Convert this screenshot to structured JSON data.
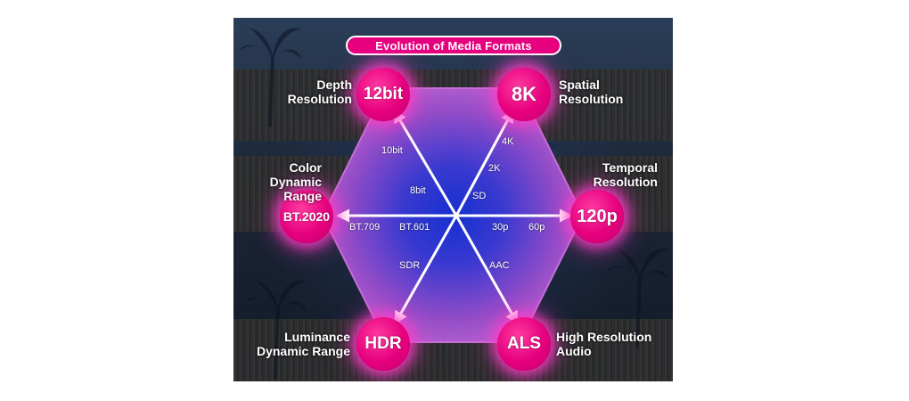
{
  "title": "Evolution of Media Formats",
  "colors": {
    "accent": "#e6007e",
    "hexagon": "#b24fd0",
    "center": "#1e3ad0",
    "arrow": "#ffffff"
  },
  "axes": [
    {
      "id": "depth",
      "node": "12bit",
      "label_lines": [
        "Depth",
        "Resolution"
      ],
      "ticks": [
        "10bit",
        "8bit"
      ]
    },
    {
      "id": "spatial",
      "node": "8K",
      "label_lines": [
        "Spatial",
        "Resolution"
      ],
      "ticks": [
        "4K",
        "2K",
        "SD"
      ]
    },
    {
      "id": "temporal",
      "node": "120p",
      "label_lines": [
        "Temporal",
        "Resolution"
      ],
      "ticks": [
        "30p",
        "60p"
      ]
    },
    {
      "id": "audio",
      "node": "ALS",
      "label_lines": [
        "High Resolution",
        "Audio"
      ],
      "ticks": [
        "AAC"
      ]
    },
    {
      "id": "luminance",
      "node": "HDR",
      "label_lines": [
        "Luminance",
        "Dynamic Range"
      ],
      "ticks": [
        "SDR"
      ]
    },
    {
      "id": "color",
      "node": "BT.2020",
      "label_lines": [
        "Color Dynamic",
        "Range"
      ],
      "ticks": [
        "BT.709",
        "BT.601"
      ]
    }
  ]
}
